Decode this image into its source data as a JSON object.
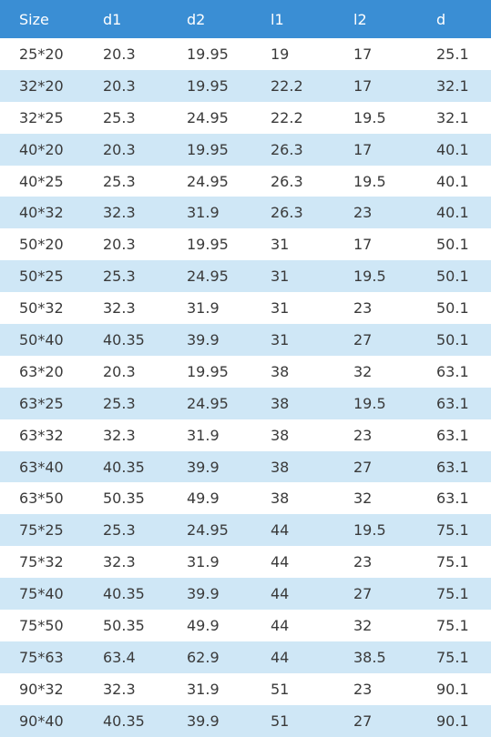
{
  "table": {
    "headers": [
      "Size",
      "d1",
      "d2",
      "l1",
      "l2",
      "d"
    ],
    "rows": [
      [
        "25*20",
        "20.3",
        "19.95",
        "19",
        "17",
        "25.1"
      ],
      [
        "32*20",
        "20.3",
        "19.95",
        "22.2",
        "17",
        "32.1"
      ],
      [
        "32*25",
        "25.3",
        "24.95",
        "22.2",
        "19.5",
        "32.1"
      ],
      [
        "40*20",
        "20.3",
        "19.95",
        "26.3",
        "17",
        "40.1"
      ],
      [
        "40*25",
        "25.3",
        "24.95",
        "26.3",
        "19.5",
        "40.1"
      ],
      [
        "40*32",
        "32.3",
        "31.9",
        "26.3",
        "23",
        "40.1"
      ],
      [
        "50*20",
        "20.3",
        "19.95",
        "31",
        "17",
        "50.1"
      ],
      [
        "50*25",
        "25.3",
        "24.95",
        "31",
        "19.5",
        "50.1"
      ],
      [
        "50*32",
        "32.3",
        "31.9",
        "31",
        "23",
        "50.1"
      ],
      [
        "50*40",
        "40.35",
        "39.9",
        "31",
        "27",
        "50.1"
      ],
      [
        "63*20",
        "20.3",
        "19.95",
        "38",
        "32",
        "63.1"
      ],
      [
        "63*25",
        "25.3",
        "24.95",
        "38",
        "19.5",
        "63.1"
      ],
      [
        "63*32",
        "32.3",
        "31.9",
        "38",
        "23",
        "63.1"
      ],
      [
        "63*40",
        "40.35",
        "39.9",
        "38",
        "27",
        "63.1"
      ],
      [
        "63*50",
        "50.35",
        "49.9",
        "38",
        "32",
        "63.1"
      ],
      [
        "75*25",
        "25.3",
        "24.95",
        "44",
        "19.5",
        "75.1"
      ],
      [
        "75*32",
        "32.3",
        "31.9",
        "44",
        "23",
        "75.1"
      ],
      [
        "75*40",
        "40.35",
        "39.9",
        "44",
        "27",
        "75.1"
      ],
      [
        "75*50",
        "50.35",
        "49.9",
        "44",
        "32",
        "75.1"
      ],
      [
        "75*63",
        "63.4",
        "62.9",
        "44",
        "38.5",
        "75.1"
      ],
      [
        "90*32",
        "32.3",
        "31.9",
        "51",
        "23",
        "90.1"
      ],
      [
        "90*40",
        "40.35",
        "39.9",
        "51",
        "27",
        "90.1"
      ]
    ]
  },
  "colors": {
    "header_bg": "#3a8ed4",
    "header_text": "#ffffff",
    "stripe_bg": "#cfe7f6",
    "row_bg": "#ffffff",
    "cell_text": "#3a3a3a"
  }
}
